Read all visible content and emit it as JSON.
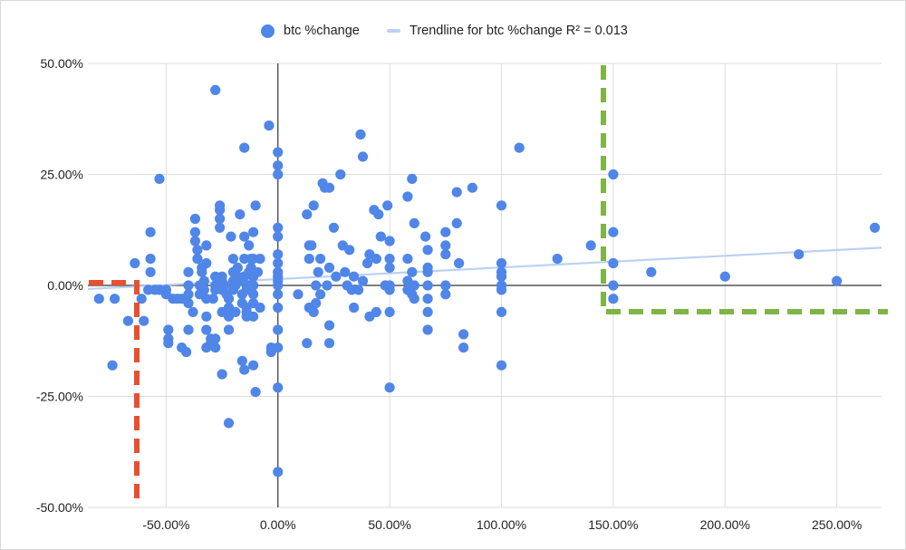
{
  "chart_data": {
    "type": "scatter",
    "title": "",
    "xlabel": "",
    "ylabel": "",
    "xlim": [
      -0.85,
      2.7
    ],
    "ylim": [
      -0.5,
      0.5
    ],
    "x_ticks": [
      -0.5,
      0,
      0.5,
      1,
      1.5,
      2,
      2.5
    ],
    "x_tick_labels": [
      "-50.00%",
      "0.00%",
      "50.00%",
      "100.00%",
      "150.00%",
      "200.00%",
      "250.00%"
    ],
    "y_ticks": [
      -0.5,
      -0.25,
      0,
      0.25,
      0.5
    ],
    "y_tick_labels": [
      "-50.00%",
      "-25.00%",
      "0.00%",
      "25.00%",
      "50.00%"
    ],
    "grid": true,
    "legend_position": "top",
    "colors": {
      "points": "#4f86e8",
      "trendline": "#bcd1f2",
      "axis": "#333333",
      "grid": "#dddddd",
      "red_dashes": "#e8502f",
      "green_dashes": "#7fb446"
    },
    "series": [
      {
        "name": "btc %change",
        "points": [
          [
            -0.8,
            -0.03
          ],
          [
            -0.73,
            -0.03
          ],
          [
            -0.67,
            -0.08
          ],
          [
            -0.74,
            -0.18
          ],
          [
            -0.64,
            0.05
          ],
          [
            -0.6,
            -0.08
          ],
          [
            -0.61,
            -0.03
          ],
          [
            -0.58,
            -0.01
          ],
          [
            -0.57,
            0.03
          ],
          [
            -0.57,
            0.06
          ],
          [
            -0.57,
            0.12
          ],
          [
            -0.53,
            0.24
          ],
          [
            -0.55,
            -0.01
          ],
          [
            -0.53,
            -0.01
          ],
          [
            -0.5,
            -0.01
          ],
          [
            -0.5,
            -0.02
          ],
          [
            -0.49,
            -0.1
          ],
          [
            -0.49,
            -0.12
          ],
          [
            -0.49,
            -0.13
          ],
          [
            -0.47,
            -0.03
          ],
          [
            -0.45,
            -0.03
          ],
          [
            -0.43,
            -0.03
          ],
          [
            -0.43,
            -0.14
          ],
          [
            -0.41,
            -0.15
          ],
          [
            -0.4,
            0.03
          ],
          [
            -0.4,
            0.0
          ],
          [
            -0.4,
            -0.02
          ],
          [
            -0.4,
            -0.04
          ],
          [
            -0.4,
            -0.1
          ],
          [
            -0.38,
            -0.06
          ],
          [
            -0.37,
            0.15
          ],
          [
            -0.37,
            0.12
          ],
          [
            -0.37,
            0.1
          ],
          [
            -0.36,
            0.08
          ],
          [
            -0.36,
            0.06
          ],
          [
            -0.35,
            0.0
          ],
          [
            -0.35,
            -0.02
          ],
          [
            -0.34,
            0.04
          ],
          [
            -0.34,
            0.03
          ],
          [
            -0.33,
            0.01
          ],
          [
            -0.33,
            -0.01
          ],
          [
            -0.32,
            0.09
          ],
          [
            -0.32,
            0.05
          ],
          [
            -0.32,
            -0.03
          ],
          [
            -0.32,
            -0.07
          ],
          [
            -0.32,
            -0.1
          ],
          [
            -0.32,
            -0.14
          ],
          [
            -0.3,
            -0.12
          ],
          [
            -0.3,
            -0.13
          ],
          [
            -0.29,
            -0.03
          ],
          [
            -0.28,
            0.44
          ],
          [
            -0.28,
            0.02
          ],
          [
            -0.28,
            0.0
          ],
          [
            -0.28,
            -0.01
          ],
          [
            -0.28,
            -0.12
          ],
          [
            -0.28,
            -0.14
          ],
          [
            -0.26,
            0.18
          ],
          [
            -0.26,
            0.17
          ],
          [
            -0.26,
            0.15
          ],
          [
            -0.26,
            0.13
          ],
          [
            -0.25,
            0.02
          ],
          [
            -0.25,
            0.01
          ],
          [
            -0.25,
            -0.01
          ],
          [
            -0.25,
            -0.06
          ],
          [
            -0.25,
            -0.2
          ],
          [
            -0.24,
            0.0
          ],
          [
            -0.23,
            -0.02
          ],
          [
            -0.22,
            -0.03
          ],
          [
            -0.22,
            -0.05
          ],
          [
            -0.22,
            -0.07
          ],
          [
            -0.22,
            -0.1
          ],
          [
            -0.22,
            -0.31
          ],
          [
            -0.21,
            0.11
          ],
          [
            -0.2,
            0.06
          ],
          [
            -0.2,
            0.03
          ],
          [
            -0.2,
            0.01
          ],
          [
            -0.2,
            -0.01
          ],
          [
            -0.19,
            0.0
          ],
          [
            -0.19,
            -0.06
          ],
          [
            -0.18,
            0.02
          ],
          [
            -0.18,
            0.04
          ],
          [
            -0.17,
            0.16
          ],
          [
            -0.17,
            0.01
          ],
          [
            -0.16,
            -0.02
          ],
          [
            -0.16,
            -0.04
          ],
          [
            -0.16,
            -0.17
          ],
          [
            -0.15,
            0.31
          ],
          [
            -0.15,
            0.11
          ],
          [
            -0.15,
            0.06
          ],
          [
            -0.15,
            0.02
          ],
          [
            -0.15,
            -0.19
          ],
          [
            -0.14,
            0.0
          ],
          [
            -0.14,
            -0.01
          ],
          [
            -0.14,
            -0.05
          ],
          [
            -0.14,
            -0.06
          ],
          [
            -0.14,
            -0.07
          ],
          [
            -0.13,
            0.09
          ],
          [
            -0.13,
            0.03
          ],
          [
            -0.13,
            0.0
          ],
          [
            -0.12,
            0.06
          ],
          [
            -0.12,
            0.04
          ],
          [
            -0.11,
            0.12
          ],
          [
            -0.11,
            0.06
          ],
          [
            -0.11,
            0.02
          ],
          [
            -0.11,
            0.0
          ],
          [
            -0.11,
            -0.02
          ],
          [
            -0.11,
            -0.04
          ],
          [
            -0.11,
            -0.07
          ],
          [
            -0.11,
            -0.18
          ],
          [
            -0.1,
            0.18
          ],
          [
            -0.1,
            -0.24
          ],
          [
            -0.09,
            0.03
          ],
          [
            -0.08,
            0.06
          ],
          [
            -0.08,
            -0.05
          ],
          [
            -0.04,
            0.36
          ],
          [
            -0.03,
            -0.14
          ],
          [
            -0.03,
            -0.15
          ],
          [
            0.0,
            0.3
          ],
          [
            0.0,
            0.27
          ],
          [
            0.0,
            0.25
          ],
          [
            0.0,
            0.13
          ],
          [
            0.0,
            0.11
          ],
          [
            0.0,
            0.07
          ],
          [
            0.0,
            0.05
          ],
          [
            0.0,
            0.03
          ],
          [
            0.0,
            0.02
          ],
          [
            0.0,
            0.01
          ],
          [
            0.0,
            0.0
          ],
          [
            0.0,
            -0.02
          ],
          [
            0.0,
            -0.05
          ],
          [
            0.0,
            -0.1
          ],
          [
            0.0,
            -0.14
          ],
          [
            0.0,
            -0.23
          ],
          [
            0.0,
            -0.42
          ],
          [
            0.09,
            -0.02
          ],
          [
            0.13,
            0.16
          ],
          [
            0.13,
            -0.13
          ],
          [
            0.14,
            0.09
          ],
          [
            0.14,
            0.06
          ],
          [
            0.14,
            -0.05
          ],
          [
            0.15,
            0.09
          ],
          [
            0.16,
            0.18
          ],
          [
            0.16,
            -0.06
          ],
          [
            0.17,
            0.0
          ],
          [
            0.17,
            -0.04
          ],
          [
            0.18,
            0.03
          ],
          [
            0.19,
            0.06
          ],
          [
            0.19,
            -0.02
          ],
          [
            0.2,
            0.23
          ],
          [
            0.21,
            0.22
          ],
          [
            0.22,
            0.0
          ],
          [
            0.23,
            0.22
          ],
          [
            0.23,
            0.04
          ],
          [
            0.23,
            -0.09
          ],
          [
            0.23,
            -0.13
          ],
          [
            0.25,
            0.13
          ],
          [
            0.26,
            0.02
          ],
          [
            0.28,
            0.25
          ],
          [
            0.29,
            0.09
          ],
          [
            0.3,
            0.03
          ],
          [
            0.31,
            0.0
          ],
          [
            0.32,
            0.08
          ],
          [
            0.33,
            -0.01
          ],
          [
            0.34,
            0.02
          ],
          [
            0.34,
            -0.05
          ],
          [
            0.36,
            -0.01
          ],
          [
            0.37,
            0.34
          ],
          [
            0.38,
            0.29
          ],
          [
            0.38,
            0.01
          ],
          [
            0.4,
            0.05
          ],
          [
            0.41,
            0.07
          ],
          [
            0.41,
            -0.07
          ],
          [
            0.43,
            0.17
          ],
          [
            0.44,
            0.06
          ],
          [
            0.44,
            -0.06
          ],
          [
            0.45,
            0.16
          ],
          [
            0.46,
            0.11
          ],
          [
            0.48,
            0.0
          ],
          [
            0.49,
            0.18
          ],
          [
            0.5,
            0.1
          ],
          [
            0.5,
            0.06
          ],
          [
            0.5,
            0.04
          ],
          [
            0.5,
            0.0
          ],
          [
            0.5,
            -0.01
          ],
          [
            0.5,
            -0.06
          ],
          [
            0.5,
            -0.23
          ],
          [
            0.58,
            0.2
          ],
          [
            0.58,
            0.06
          ],
          [
            0.58,
            0.01
          ],
          [
            0.58,
            -0.01
          ],
          [
            0.6,
            0.24
          ],
          [
            0.6,
            0.03
          ],
          [
            0.6,
            -0.02
          ],
          [
            0.61,
            0.14
          ],
          [
            0.61,
            0.0
          ],
          [
            0.61,
            -0.03
          ],
          [
            0.66,
            0.11
          ],
          [
            0.67,
            0.08
          ],
          [
            0.67,
            0.04
          ],
          [
            0.67,
            0.03
          ],
          [
            0.67,
            0.0
          ],
          [
            0.67,
            -0.03
          ],
          [
            0.67,
            -0.06
          ],
          [
            0.67,
            -0.1
          ],
          [
            0.75,
            0.12
          ],
          [
            0.75,
            0.09
          ],
          [
            0.75,
            0.07
          ],
          [
            0.75,
            0.0
          ],
          [
            0.75,
            -0.02
          ],
          [
            0.8,
            0.21
          ],
          [
            0.8,
            0.14
          ],
          [
            0.81,
            0.05
          ],
          [
            0.83,
            -0.11
          ],
          [
            0.83,
            -0.14
          ],
          [
            0.87,
            0.22
          ],
          [
            1.0,
            0.18
          ],
          [
            1.0,
            0.05
          ],
          [
            1.0,
            0.03
          ],
          [
            1.0,
            0.02
          ],
          [
            1.0,
            0.0
          ],
          [
            1.0,
            -0.01
          ],
          [
            1.0,
            -0.06
          ],
          [
            1.0,
            -0.18
          ],
          [
            1.08,
            0.31
          ],
          [
            1.25,
            0.06
          ],
          [
            1.4,
            0.09
          ],
          [
            1.5,
            0.25
          ],
          [
            1.5,
            0.12
          ],
          [
            1.5,
            0.05
          ],
          [
            1.5,
            0.0
          ],
          [
            1.5,
            -0.03
          ],
          [
            1.67,
            0.03
          ],
          [
            2.0,
            0.02
          ],
          [
            2.33,
            0.07
          ],
          [
            2.5,
            0.01
          ],
          [
            2.67,
            0.13
          ]
        ]
      },
      {
        "name": "Trendline for btc %change R² = 0.013",
        "type": "trendline",
        "from": [
          -0.85,
          -0.008
        ],
        "to": [
          2.7,
          0.085
        ]
      }
    ]
  }
}
